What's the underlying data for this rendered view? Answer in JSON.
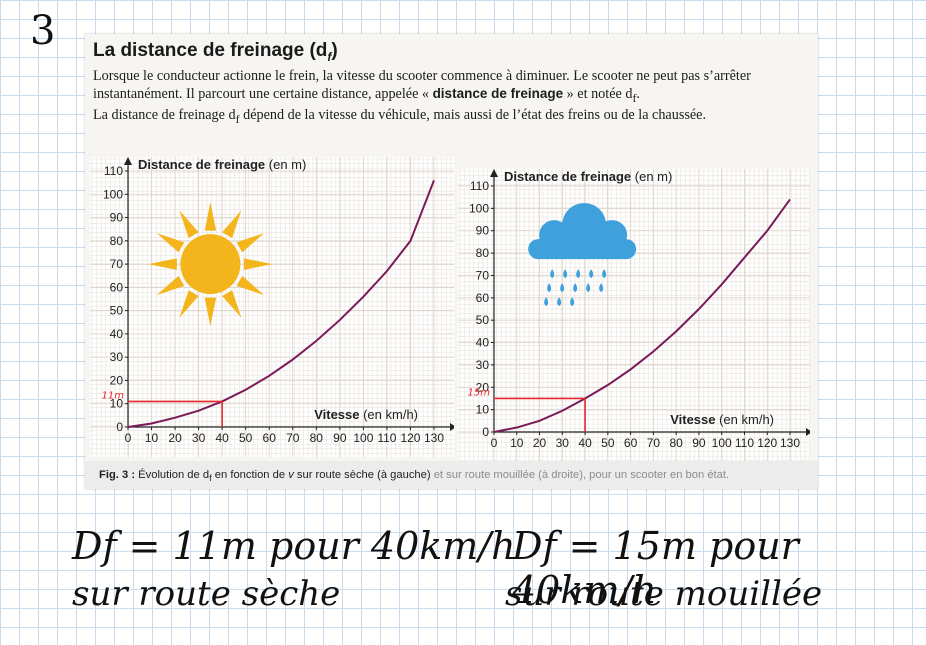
{
  "exercise_number": "3",
  "section": {
    "title": "La distance de freinage (d",
    "title_subscript": "f",
    "title_end": ")"
  },
  "paragraph": {
    "p1_a": "Lorsque le conducteur actionne le frein, la vitesse du scooter commence à diminuer. Le scooter ne peut pas s’arrêter instantanément. Il parcourt une certaine distance, appelée « ",
    "p1_bold": "distance de freinage",
    "p1_b": " » et notée d",
    "p1_sub": "f",
    "p1_end": ".",
    "p2_a": "La distance de freinage d",
    "p2_sub": "f",
    "p2_b": " dépend de la vitesse du véhicule, mais aussi de l’état des freins ou de la chaussée."
  },
  "chart_data": [
    {
      "type": "line",
      "ylabel": "Distance de freinage",
      "ylabel_unit": "(en m)",
      "xlabel": "Vitesse",
      "xlabel_unit": "(en km/h)",
      "xlim": [
        0,
        130
      ],
      "ylim": [
        0,
        110
      ],
      "x_ticks": [
        "0",
        "10",
        "20",
        "30",
        "40",
        "50",
        "60",
        "70",
        "80",
        "90",
        "100",
        "110",
        "120",
        "130"
      ],
      "y_ticks": [
        "0",
        "10",
        "20",
        "30",
        "40",
        "50",
        "60",
        "70",
        "80",
        "90",
        "100",
        "110"
      ],
      "series": [
        {
          "x": [
            0,
            10,
            20,
            30,
            40,
            50,
            60,
            70,
            80,
            90,
            100,
            110,
            120,
            130
          ],
          "y": [
            0,
            1.5,
            4,
            7,
            11,
            16,
            22,
            29,
            37,
            46,
            56,
            67,
            80,
            106
          ]
        }
      ],
      "annotation": {
        "x": 40,
        "y": 11,
        "label": "11m",
        "color": "#e8262b"
      },
      "illustration": "sun-icon",
      "line_color": "#7a1a58"
    },
    {
      "type": "line",
      "ylabel": "Distance de freinage",
      "ylabel_unit": "(en m)",
      "xlabel": "Vitesse",
      "xlabel_unit": "(en km/h)",
      "xlim": [
        0,
        130
      ],
      "ylim": [
        0,
        110
      ],
      "x_ticks": [
        "0",
        "10",
        "20",
        "30",
        "40",
        "50",
        "60",
        "70",
        "80",
        "90",
        "100",
        "110",
        "120",
        "130"
      ],
      "y_ticks": [
        "0",
        "10",
        "20",
        "30",
        "40",
        "50",
        "60",
        "70",
        "80",
        "90",
        "100",
        "110"
      ],
      "series": [
        {
          "x": [
            0,
            10,
            20,
            30,
            40,
            50,
            60,
            70,
            80,
            90,
            100,
            110,
            120,
            130
          ],
          "y": [
            0,
            2,
            5,
            9.5,
            15,
            21,
            28,
            36,
            45,
            55,
            66,
            78,
            90,
            104
          ]
        }
      ],
      "annotation": {
        "x": 40,
        "y": 15,
        "label": "15m",
        "color": "#e8262b"
      },
      "illustration": "rain-cloud-icon",
      "line_color": "#7a1a58"
    }
  ],
  "caption": {
    "fig": "Fig. 3 :",
    "text_a": " Évolution de d",
    "sub": "f",
    "text_b": " en fonction de ",
    "v": "v",
    "text_c": " sur route sèche (à gauche)",
    "faded": " et sur route mouillée (à droite), pour un scooter en bon état."
  },
  "handwriting": {
    "dry_line1": "Df = 11m pour 40km/h",
    "dry_line2": "sur route sèche",
    "wet_line1": "Df = 15m pour 40km/h",
    "wet_line2": "sur route mouillée"
  },
  "colors": {
    "curve": "#7a1a58",
    "annotation": "#e8262b",
    "sun": "#f4b51c",
    "cloud": "#3ea1dc",
    "grid_paper": "#c9dcef"
  }
}
